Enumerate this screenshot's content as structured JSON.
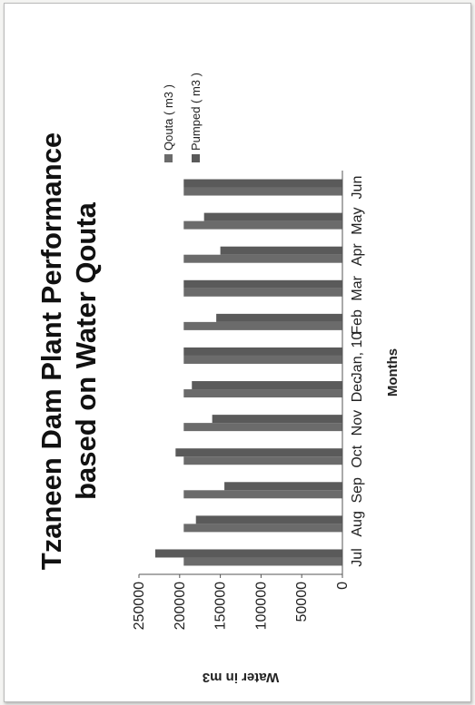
{
  "chart_data": {
    "type": "bar",
    "orientation": "horizontal",
    "title_lines": [
      "Tzaneen Dam Plant Performance",
      "based on Water Qouta"
    ],
    "xlabel": "Months",
    "ylabel": "Water in m3",
    "categories": [
      "Jul",
      "Aug",
      "Sep",
      "Oct",
      "Nov",
      "Dec",
      "Jan, 10",
      "Feb",
      "Mar",
      "Apr",
      "May",
      "Jun"
    ],
    "series": [
      {
        "name": "Qouta ( m3 )",
        "color": "#6b6b6b",
        "values": [
          195000,
          195000,
          195000,
          195000,
          195000,
          195000,
          195000,
          195000,
          195000,
          195000,
          195000,
          195000
        ]
      },
      {
        "name": "Pumped ( m3 )",
        "color": "#5a5a5a",
        "values": [
          230000,
          180000,
          145000,
          205000,
          160000,
          185000,
          195000,
          155000,
          195000,
          150000,
          170000,
          195000
        ]
      }
    ],
    "ylim": [
      0,
      250000
    ],
    "yticks": [
      "0",
      "50000",
      "100000",
      "150000",
      "200000",
      "250000"
    ],
    "legend_position": "right",
    "grid": false
  }
}
